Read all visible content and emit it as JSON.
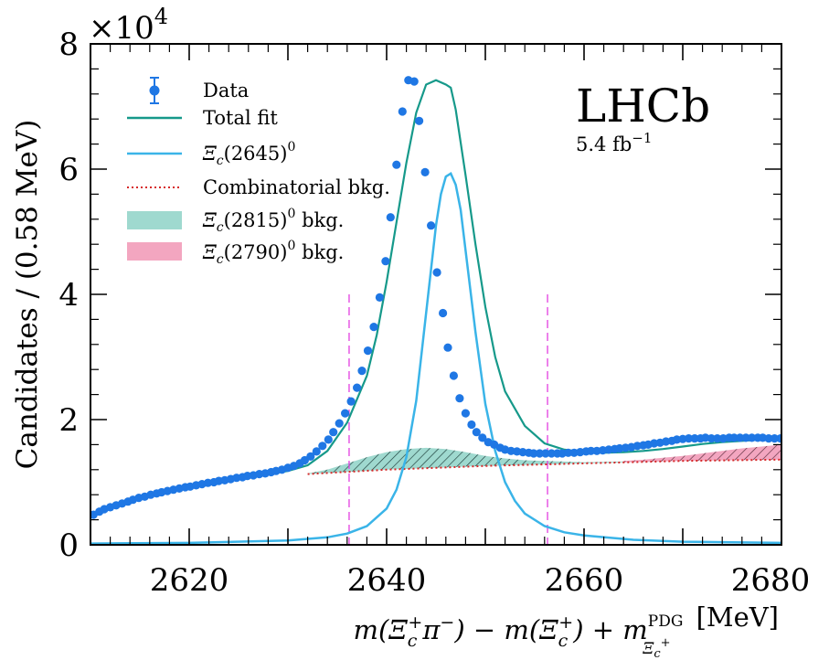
{
  "chart_data": {
    "type": "line",
    "ylabel": "Candidates / (0.58 MeV)",
    "xlabel": {
      "prefix": "m(Ξ",
      "c_sub": "c",
      "plus_sup": "+",
      "pi": "π",
      "minus_sup": "−",
      "mid": ") − m(Ξ",
      "mid_end": ") + m",
      "pdg_sup": "PDG",
      "pdg_sub_xi": "Ξ",
      "pdg_sub_c": "c",
      "pdg_sub_plus": "+",
      "unit": "[MeV]"
    },
    "y_multiplier": "×10",
    "y_multiplier_exp": "4",
    "xlim": [
      2610,
      2680
    ],
    "ylim": [
      0,
      8
    ],
    "x_ticks": [
      "2620",
      "2640",
      "2660",
      "2680"
    ],
    "x_tick_values": [
      2620,
      2640,
      2660,
      2680
    ],
    "y_ticks": [
      "0",
      "2",
      "4",
      "6",
      "8"
    ],
    "y_tick_values": [
      0,
      2,
      4,
      6,
      8
    ],
    "experiment_label": "LHCb",
    "luminosity": "5.4 fb",
    "luminosity_exp": "−1",
    "legend": {
      "placement": "top-left",
      "data": "Data",
      "total_fit": "Total fit",
      "signal": "(2645)",
      "signal_exp": "0",
      "combinatorial": "Combinatorial bkg.",
      "bkg2815": "(2815)",
      "bkg2815_exp": "0",
      "bkg2815_suffix": " bkg.",
      "bkg2790": "(2790)",
      "bkg2790_exp": "0",
      "bkg2790_suffix": " bkg.",
      "xi": "Ξ",
      "c": "c"
    },
    "signal_region_lines": [
      2636.2,
      2656.3
    ],
    "colors": {
      "data": "#1f77e4",
      "total_fit": "#16998a",
      "signal": "#3ab4e8",
      "combinatorial": "#d62828",
      "bkg2815": "#9fd9cf",
      "bkg2790": "#f3a6c0",
      "signal_lines": "#e23ee0"
    },
    "series": [
      {
        "name": "Data",
        "x": [
          2610.3,
          2610.9,
          2611.4,
          2612.0,
          2612.6,
          2613.2,
          2613.8,
          2614.3,
          2614.9,
          2615.5,
          2616.1,
          2616.7,
          2617.2,
          2617.8,
          2618.4,
          2619.0,
          2619.6,
          2620.1,
          2620.7,
          2621.3,
          2621.9,
          2622.5,
          2623.0,
          2623.6,
          2624.2,
          2624.8,
          2625.4,
          2625.9,
          2626.5,
          2627.1,
          2627.7,
          2628.3,
          2628.8,
          2629.4,
          2630.0,
          2630.6,
          2631.2,
          2631.7,
          2632.3,
          2632.9,
          2633.5,
          2634.1,
          2634.6,
          2635.2,
          2635.8,
          2636.4,
          2637.0,
          2637.5,
          2638.1,
          2638.7,
          2639.3,
          2639.9,
          2640.4,
          2641.0,
          2641.6,
          2642.2,
          2642.8,
          2643.3,
          2643.9,
          2644.5,
          2645.1,
          2645.7,
          2646.2,
          2646.8,
          2647.4,
          2648.0,
          2648.6,
          2649.1,
          2649.7,
          2650.3,
          2650.9,
          2651.5,
          2652.0,
          2652.6,
          2653.2,
          2653.8,
          2654.4,
          2654.9,
          2655.5,
          2656.1,
          2656.7,
          2657.3,
          2657.8,
          2658.4,
          2659.0,
          2659.6,
          2660.2,
          2660.7,
          2661.3,
          2661.9,
          2662.5,
          2663.1,
          2663.6,
          2664.2,
          2664.8,
          2665.4,
          2666.0,
          2666.5,
          2667.1,
          2667.7,
          2668.3,
          2668.9,
          2669.4,
          2670.0,
          2670.6,
          2671.2,
          2671.8,
          2672.3,
          2672.9,
          2673.5,
          2674.1,
          2674.7,
          2675.2,
          2675.8,
          2676.4,
          2677.0,
          2677.6,
          2678.1,
          2678.7,
          2679.3,
          2679.9
        ],
        "y": [
          0.48,
          0.53,
          0.57,
          0.6,
          0.63,
          0.66,
          0.69,
          0.72,
          0.75,
          0.77,
          0.8,
          0.82,
          0.84,
          0.86,
          0.88,
          0.9,
          0.92,
          0.93,
          0.95,
          0.97,
          0.99,
          1.0,
          1.02,
          1.03,
          1.05,
          1.07,
          1.08,
          1.1,
          1.11,
          1.13,
          1.14,
          1.16,
          1.18,
          1.2,
          1.23,
          1.26,
          1.3,
          1.35,
          1.41,
          1.49,
          1.58,
          1.68,
          1.8,
          1.94,
          2.1,
          2.29,
          2.51,
          2.78,
          3.1,
          3.48,
          3.95,
          4.53,
          5.23,
          6.07,
          6.92,
          7.42,
          7.4,
          6.77,
          5.95,
          5.1,
          4.35,
          3.7,
          3.15,
          2.7,
          2.34,
          2.1,
          1.92,
          1.8,
          1.71,
          1.64,
          1.6,
          1.55,
          1.52,
          1.5,
          1.49,
          1.48,
          1.47,
          1.46,
          1.46,
          1.46,
          1.46,
          1.46,
          1.46,
          1.47,
          1.47,
          1.48,
          1.49,
          1.5,
          1.5,
          1.51,
          1.52,
          1.53,
          1.54,
          1.55,
          1.56,
          1.58,
          1.59,
          1.6,
          1.62,
          1.63,
          1.65,
          1.66,
          1.68,
          1.69,
          1.7,
          1.7,
          1.7,
          1.71,
          1.7,
          1.7,
          1.7,
          1.71,
          1.71,
          1.71,
          1.71,
          1.71,
          1.71,
          1.71,
          1.7,
          1.7,
          1.7
        ]
      },
      {
        "name": "Total fit",
        "x": [
          2610,
          2612,
          2614,
          2616,
          2618,
          2620,
          2622,
          2624,
          2626,
          2628,
          2630,
          2632,
          2634,
          2636,
          2638,
          2639,
          2640,
          2641,
          2642,
          2643,
          2644,
          2645,
          2646,
          2646.5,
          2647,
          2648,
          2649,
          2650,
          2651,
          2652,
          2654,
          2656,
          2658,
          2660,
          2662,
          2664,
          2666,
          2668,
          2670,
          2672,
          2674,
          2676,
          2678,
          2680
        ],
        "y": [
          0.45,
          0.58,
          0.7,
          0.78,
          0.86,
          0.93,
          0.99,
          1.04,
          1.09,
          1.13,
          1.18,
          1.27,
          1.5,
          1.95,
          2.7,
          3.35,
          4.2,
          5.15,
          6.1,
          6.9,
          7.35,
          7.42,
          7.35,
          7.3,
          6.95,
          5.9,
          4.8,
          3.8,
          3.0,
          2.45,
          1.9,
          1.62,
          1.52,
          1.48,
          1.47,
          1.48,
          1.5,
          1.53,
          1.57,
          1.61,
          1.64,
          1.66,
          1.68,
          1.7
        ]
      },
      {
        "name": "Ξc(2645)0",
        "x": [
          2610,
          2620,
          2630,
          2634,
          2636,
          2638,
          2640,
          2641,
          2642,
          2643,
          2644,
          2645,
          2645.5,
          2646,
          2646.5,
          2647,
          2647.5,
          2648,
          2649,
          2650,
          2651,
          2652,
          2653,
          2654,
          2656,
          2658,
          2660,
          2665,
          2670,
          2675,
          2680
        ],
        "y": [
          0.02,
          0.03,
          0.07,
          0.12,
          0.18,
          0.3,
          0.58,
          0.88,
          1.4,
          2.3,
          3.7,
          5.1,
          5.6,
          5.88,
          5.93,
          5.75,
          5.35,
          4.7,
          3.4,
          2.25,
          1.5,
          1.0,
          0.7,
          0.5,
          0.3,
          0.2,
          0.15,
          0.08,
          0.05,
          0.04,
          0.03
        ]
      },
      {
        "name": "Combinatorial bkg.",
        "x": [
          2632,
          2640,
          2650,
          2660,
          2670,
          2680
        ],
        "y": [
          1.13,
          1.2,
          1.26,
          1.3,
          1.34,
          1.36
        ]
      },
      {
        "name": "Ξc(2815)0 bkg.",
        "x": [
          2632,
          2634,
          2636,
          2638,
          2640,
          2642,
          2644,
          2646,
          2648,
          2650,
          2652,
          2654,
          2656,
          2658,
          2660,
          2664,
          2668
        ],
        "y": [
          1.14,
          1.2,
          1.3,
          1.4,
          1.48,
          1.53,
          1.55,
          1.53,
          1.48,
          1.42,
          1.38,
          1.35,
          1.34,
          1.33,
          1.32,
          1.33,
          1.34
        ]
      },
      {
        "name": "Ξc(2790)0 bkg.",
        "x": [
          2664,
          2666,
          2668,
          2670,
          2672,
          2674,
          2676,
          2678,
          2680
        ],
        "y": [
          1.34,
          1.36,
          1.39,
          1.42,
          1.46,
          1.5,
          1.54,
          1.57,
          1.6
        ]
      }
    ]
  }
}
